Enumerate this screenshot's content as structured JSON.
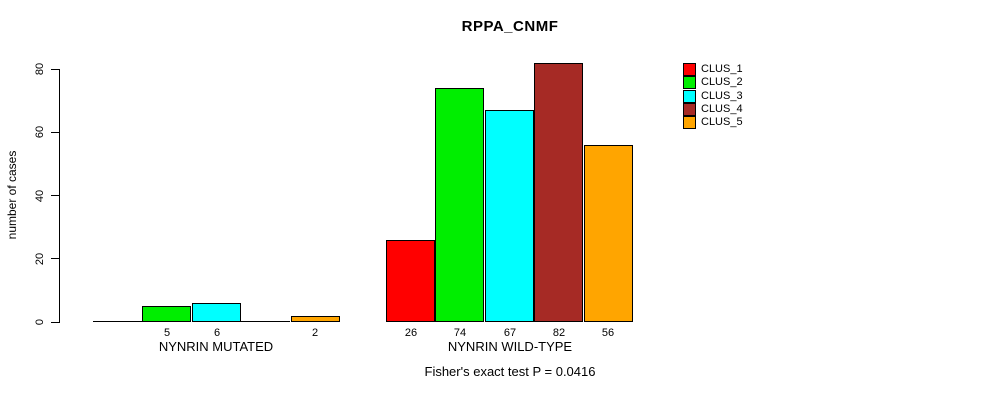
{
  "chart_data": {
    "type": "bar",
    "title": "RPPA_CNMF",
    "ylabel": "number of cases",
    "xlabel": "",
    "categories": [
      "NYNRIN MUTATED",
      "NYNRIN WILD-TYPE"
    ],
    "series": [
      {
        "name": "CLUS_1",
        "color": "#FF0000",
        "values": [
          0,
          26
        ]
      },
      {
        "name": "CLUS_2",
        "color": "#00EE00",
        "values": [
          5,
          74
        ]
      },
      {
        "name": "CLUS_3",
        "color": "#00FFFF",
        "values": [
          6,
          67
        ]
      },
      {
        "name": "CLUS_4",
        "color": "#A62A25",
        "values": [
          0,
          82
        ]
      },
      {
        "name": "CLUS_5",
        "color": "#FFA500",
        "values": [
          2,
          56
        ]
      }
    ],
    "yticks": [
      0,
      20,
      40,
      60,
      80
    ],
    "ylim": [
      0,
      80
    ],
    "grid": false,
    "legend_position": "right",
    "bar_value_labels": "nonzero values shown under bars",
    "annotation": "Fisher's exact test P = 0.0416"
  }
}
